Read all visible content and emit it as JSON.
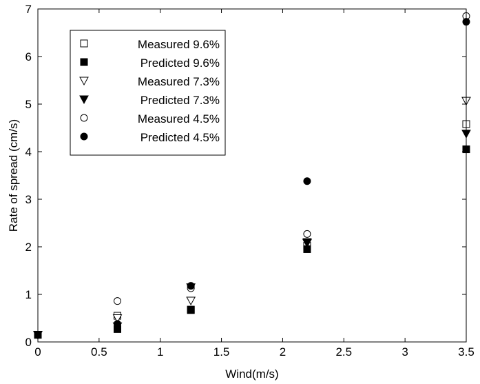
{
  "chart_data": {
    "type": "scatter",
    "title": "",
    "xlabel": "Wind(m/s)",
    "ylabel": "Rate of spread (cm/s)",
    "xlim": [
      0,
      3.5
    ],
    "ylim": [
      0,
      7
    ],
    "xticks": [
      0,
      0.5,
      1,
      1.5,
      2,
      2.5,
      3,
      3.5
    ],
    "yticks": [
      0,
      1,
      2,
      3,
      4,
      5,
      6,
      7
    ],
    "xtick_labels": [
      "0",
      "0.5",
      "1",
      "1.5",
      "2",
      "2.5",
      "3",
      "3.5"
    ],
    "ytick_labels": [
      "0",
      "1",
      "2",
      "3",
      "4",
      "5",
      "6",
      "7"
    ],
    "grid": false,
    "legend_position": "top-left",
    "series": [
      {
        "name": "Measured 9.6%",
        "marker": "square-open",
        "x": [
          0,
          0.65,
          1.25,
          2.2,
          3.5
        ],
        "y": [
          0.15,
          0.55,
          0.68,
          2.02,
          4.58
        ]
      },
      {
        "name": "Predicted 9.6%",
        "marker": "square-filled",
        "x": [
          0,
          0.65,
          1.25,
          2.2,
          3.5
        ],
        "y": [
          0.15,
          0.27,
          0.67,
          1.95,
          4.05
        ]
      },
      {
        "name": "Measured 7.3%",
        "marker": "triangle-down-open",
        "x": [
          0,
          0.65,
          1.25,
          2.2,
          3.5
        ],
        "y": [
          0.15,
          0.5,
          0.87,
          2.08,
          5.07
        ]
      },
      {
        "name": "Predicted 7.3%",
        "marker": "triangle-down-filled",
        "x": [
          0,
          0.65,
          1.25,
          2.2,
          3.5
        ],
        "y": [
          0.15,
          0.33,
          1.15,
          2.1,
          4.38
        ]
      },
      {
        "name": "Measured 4.5%",
        "marker": "circle-open",
        "x": [
          0,
          0.65,
          1.25,
          2.2,
          3.5
        ],
        "y": [
          0.15,
          0.86,
          1.13,
          2.27,
          6.85
        ]
      },
      {
        "name": "Predicted 4.5%",
        "marker": "circle-filled",
        "x": [
          0,
          0.65,
          1.25,
          2.2,
          3.5
        ],
        "y": [
          0.15,
          0.38,
          1.18,
          3.38,
          6.73
        ]
      }
    ]
  }
}
